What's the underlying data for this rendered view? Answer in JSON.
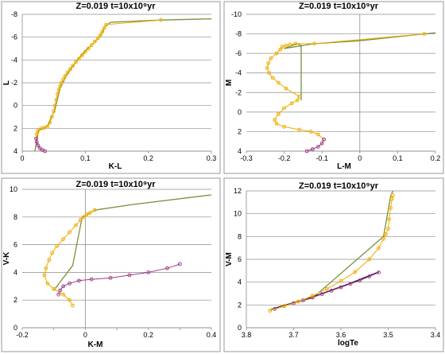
{
  "chart_data": [
    {
      "type": "line",
      "title": "Z=0.019   t=10x10⁹yr",
      "xlabel": "K-L",
      "ylabel": "L",
      "xlim": [
        0,
        0.3
      ],
      "ylim": [
        4,
        -8
      ],
      "xticks": [
        0,
        0.1,
        0.2,
        0.3
      ],
      "xtick_labels": [
        "0",
        "0.1",
        "0.2",
        "0.3"
      ],
      "yticks": [
        4,
        2,
        0,
        -2,
        -4,
        -6,
        -8
      ],
      "ytick_labels": [
        "4",
        "2",
        "0",
        "-2",
        "-4",
        "-6",
        "-8"
      ],
      "grid": "horizontal",
      "series": [
        {
          "color": "#76923c",
          "marker": "none",
          "x": [
            0.02,
            0.026,
            0.04,
            0.052,
            0.06,
            0.072,
            0.085,
            0.098,
            0.11,
            0.122,
            0.128,
            0.13,
            0.131,
            0.133,
            0.14,
            0.22,
            0.3
          ],
          "y": [
            4,
            2.2,
            1.8,
            0.3,
            -1.5,
            -2.8,
            -3.8,
            -4.7,
            -5.3,
            -6.0,
            -6.5,
            -6.8,
            -6.9,
            -7.0,
            -7.3,
            -7.5,
            -7.6
          ]
        },
        {
          "color": "#f0ad00",
          "marker": "o",
          "x": [
            0.022,
            0.023,
            0.025,
            0.03,
            0.035,
            0.04,
            0.044,
            0.047,
            0.05,
            0.052,
            0.054,
            0.056,
            0.058,
            0.06,
            0.062,
            0.065,
            0.068,
            0.072,
            0.076,
            0.08,
            0.085,
            0.09,
            0.095,
            0.1,
            0.105,
            0.11,
            0.115,
            0.12,
            0.124,
            0.127,
            0.13,
            0.133,
            0.22
          ],
          "y": [
            2.9,
            2.5,
            2.2,
            2.0,
            1.95,
            1.85,
            1.5,
            1.0,
            0.5,
            0.0,
            -0.5,
            -1.0,
            -1.4,
            -1.7,
            -2.0,
            -2.3,
            -2.6,
            -2.9,
            -3.2,
            -3.5,
            -3.8,
            -4.1,
            -4.4,
            -4.7,
            -5.0,
            -5.3,
            -5.6,
            -5.9,
            -6.2,
            -6.5,
            -6.8,
            -7.1,
            -7.5
          ]
        },
        {
          "color": "#a03c8c",
          "marker": "o",
          "x": [
            0.022,
            0.023,
            0.025,
            0.028,
            0.032,
            0.036
          ],
          "y": [
            2.9,
            3.2,
            3.5,
            3.75,
            3.9,
            4.0
          ]
        }
      ]
    },
    {
      "type": "line",
      "title": "Z=0.019   t=10x10⁹yr",
      "xlabel": "L-M",
      "ylabel": "M",
      "xlim": [
        -0.3,
        0.2
      ],
      "ylim": [
        4,
        -10
      ],
      "xticks": [
        -0.3,
        -0.2,
        -0.1,
        0,
        0.1,
        0.2
      ],
      "xtick_labels": [
        "-0.3",
        "-0.2",
        "-0.1",
        "0",
        "0.1",
        "0.2"
      ],
      "yticks": [
        4,
        2,
        0,
        -2,
        -4,
        -6,
        -8,
        -10
      ],
      "ytick_labels": [
        "4",
        "2",
        "0",
        "-2",
        "-4",
        "-6",
        "-8",
        "-10"
      ],
      "grid": "horizontal",
      "series": [
        {
          "color": "#76923c",
          "marker": "none",
          "x": [
            -0.155,
            -0.155,
            -0.165,
            -0.2,
            -0.12,
            0.0,
            0.17,
            0.2
          ],
          "y": [
            -1.2,
            -6.8,
            -7.0,
            -6.5,
            -7.0,
            -7.3,
            -8.0,
            -8.1
          ]
        },
        {
          "color": "#f0ad00",
          "marker": "o",
          "x": [
            -0.095,
            -0.11,
            -0.13,
            -0.16,
            -0.2,
            -0.22,
            -0.225,
            -0.215,
            -0.2,
            -0.18,
            -0.165,
            -0.16,
            -0.195,
            -0.215,
            -0.23,
            -0.24,
            -0.245,
            -0.242,
            -0.235,
            -0.22,
            -0.21,
            -0.205,
            -0.195,
            -0.185,
            -0.17,
            -0.12,
            0.17
          ],
          "y": [
            2.8,
            2.3,
            2.0,
            1.8,
            1.5,
            1.2,
            0.8,
            0.2,
            -0.4,
            -0.9,
            -1.2,
            -1.6,
            -2.4,
            -3.0,
            -3.5,
            -4.0,
            -4.5,
            -5.0,
            -5.5,
            -6.0,
            -6.4,
            -6.7,
            -6.8,
            -6.9,
            -7.0,
            -7.0,
            -8.0
          ]
        },
        {
          "color": "#a03c8c",
          "marker": "o",
          "x": [
            -0.095,
            -0.1,
            -0.11,
            -0.125,
            -0.14
          ],
          "y": [
            2.8,
            3.2,
            3.55,
            3.8,
            4.0
          ]
        }
      ]
    },
    {
      "type": "line",
      "title": "Z=0.019   t=10x10⁹yr",
      "xlabel": "K-M",
      "ylabel": "V-K",
      "xlim": [
        -0.2,
        0.4
      ],
      "ylim": [
        0,
        10
      ],
      "xticks": [
        -0.2,
        0,
        0.2,
        0.4
      ],
      "xtick_labels": [
        "-0.2",
        "0",
        "0.2",
        "0.4"
      ],
      "xminor": [
        -0.1,
        0.1,
        0.3
      ],
      "yticks": [
        0,
        2,
        4,
        6,
        8,
        10
      ],
      "ytick_labels": [
        "0",
        "2",
        "4",
        "6",
        "8",
        "10"
      ],
      "grid": "horizontal",
      "series": [
        {
          "color": "#76923c",
          "marker": "none",
          "x": [
            -0.1,
            -0.04,
            -0.01,
            0.0,
            0.03,
            0.15,
            0.4
          ],
          "y": [
            2.7,
            4.5,
            8.0,
            8.1,
            8.5,
            8.9,
            9.6
          ]
        },
        {
          "color": "#a03c8c",
          "marker": "o",
          "x": [
            -0.085,
            -0.08,
            -0.07,
            -0.05,
            -0.02,
            0.02,
            0.08,
            0.14,
            0.2,
            0.26,
            0.3
          ],
          "y": [
            2.4,
            2.7,
            3.0,
            3.2,
            3.4,
            3.5,
            3.6,
            3.8,
            4.0,
            4.3,
            4.6
          ]
        },
        {
          "color": "#f0ad00",
          "marker": "o",
          "x": [
            -0.04,
            -0.05,
            -0.07,
            -0.1,
            -0.12,
            -0.13,
            -0.125,
            -0.115,
            -0.105,
            -0.09,
            -0.07,
            -0.05,
            -0.03,
            -0.015,
            -0.005,
            0.005,
            0.015,
            0.03
          ],
          "y": [
            1.6,
            2.0,
            2.4,
            2.8,
            3.2,
            3.8,
            4.3,
            4.9,
            5.4,
            5.9,
            6.4,
            6.9,
            7.4,
            7.8,
            8.0,
            8.2,
            8.3,
            8.5
          ]
        }
      ]
    },
    {
      "type": "line",
      "title": "Z=0.019   t=10x10⁹yr",
      "xlabel": "logTe",
      "ylabel": "V-M",
      "xlim": [
        3.8,
        3.4
      ],
      "ylim": [
        0,
        12
      ],
      "xticks": [
        3.8,
        3.7,
        3.6,
        3.5,
        3.4
      ],
      "xtick_labels": [
        "3.8",
        "3.7",
        "3.6",
        "3.5",
        "3.4"
      ],
      "yticks": [
        0,
        2,
        4,
        6,
        8,
        10,
        12
      ],
      "ytick_labels": [
        "0",
        "2",
        "4",
        "6",
        "8",
        "10",
        "12"
      ],
      "grid": "horizontal",
      "series": [
        {
          "color": "#76923c",
          "marker": "none",
          "x": [
            3.75,
            3.7,
            3.66,
            3.51,
            3.495,
            3.49
          ],
          "y": [
            1.6,
            2.2,
            2.6,
            8.0,
            11.5,
            12.0
          ]
        },
        {
          "color": "#1a1a2e",
          "marker": "none",
          "x": [
            3.74,
            3.7,
            3.66,
            3.62,
            3.58,
            3.55,
            3.52
          ],
          "y": [
            1.7,
            2.2,
            2.7,
            3.3,
            3.9,
            4.4,
            4.9
          ]
        },
        {
          "color": "#a03c8c",
          "marker": "o",
          "x": [
            3.74,
            3.72,
            3.7,
            3.68,
            3.66,
            3.64,
            3.62,
            3.6,
            3.58,
            3.56,
            3.54,
            3.52
          ],
          "y": [
            1.65,
            1.9,
            2.15,
            2.4,
            2.65,
            2.95,
            3.25,
            3.55,
            3.85,
            4.15,
            4.5,
            4.85
          ]
        },
        {
          "color": "#f0ad00",
          "marker": "o",
          "x": [
            3.75,
            3.72,
            3.69,
            3.66,
            3.63,
            3.6,
            3.57,
            3.54,
            3.52,
            3.51,
            3.505,
            3.5,
            3.498,
            3.495,
            3.492,
            3.49
          ],
          "y": [
            1.5,
            1.9,
            2.3,
            2.8,
            3.4,
            4.1,
            4.9,
            6.0,
            7.0,
            7.8,
            8.2,
            8.7,
            9.5,
            10.5,
            11.3,
            11.6
          ]
        }
      ]
    }
  ]
}
